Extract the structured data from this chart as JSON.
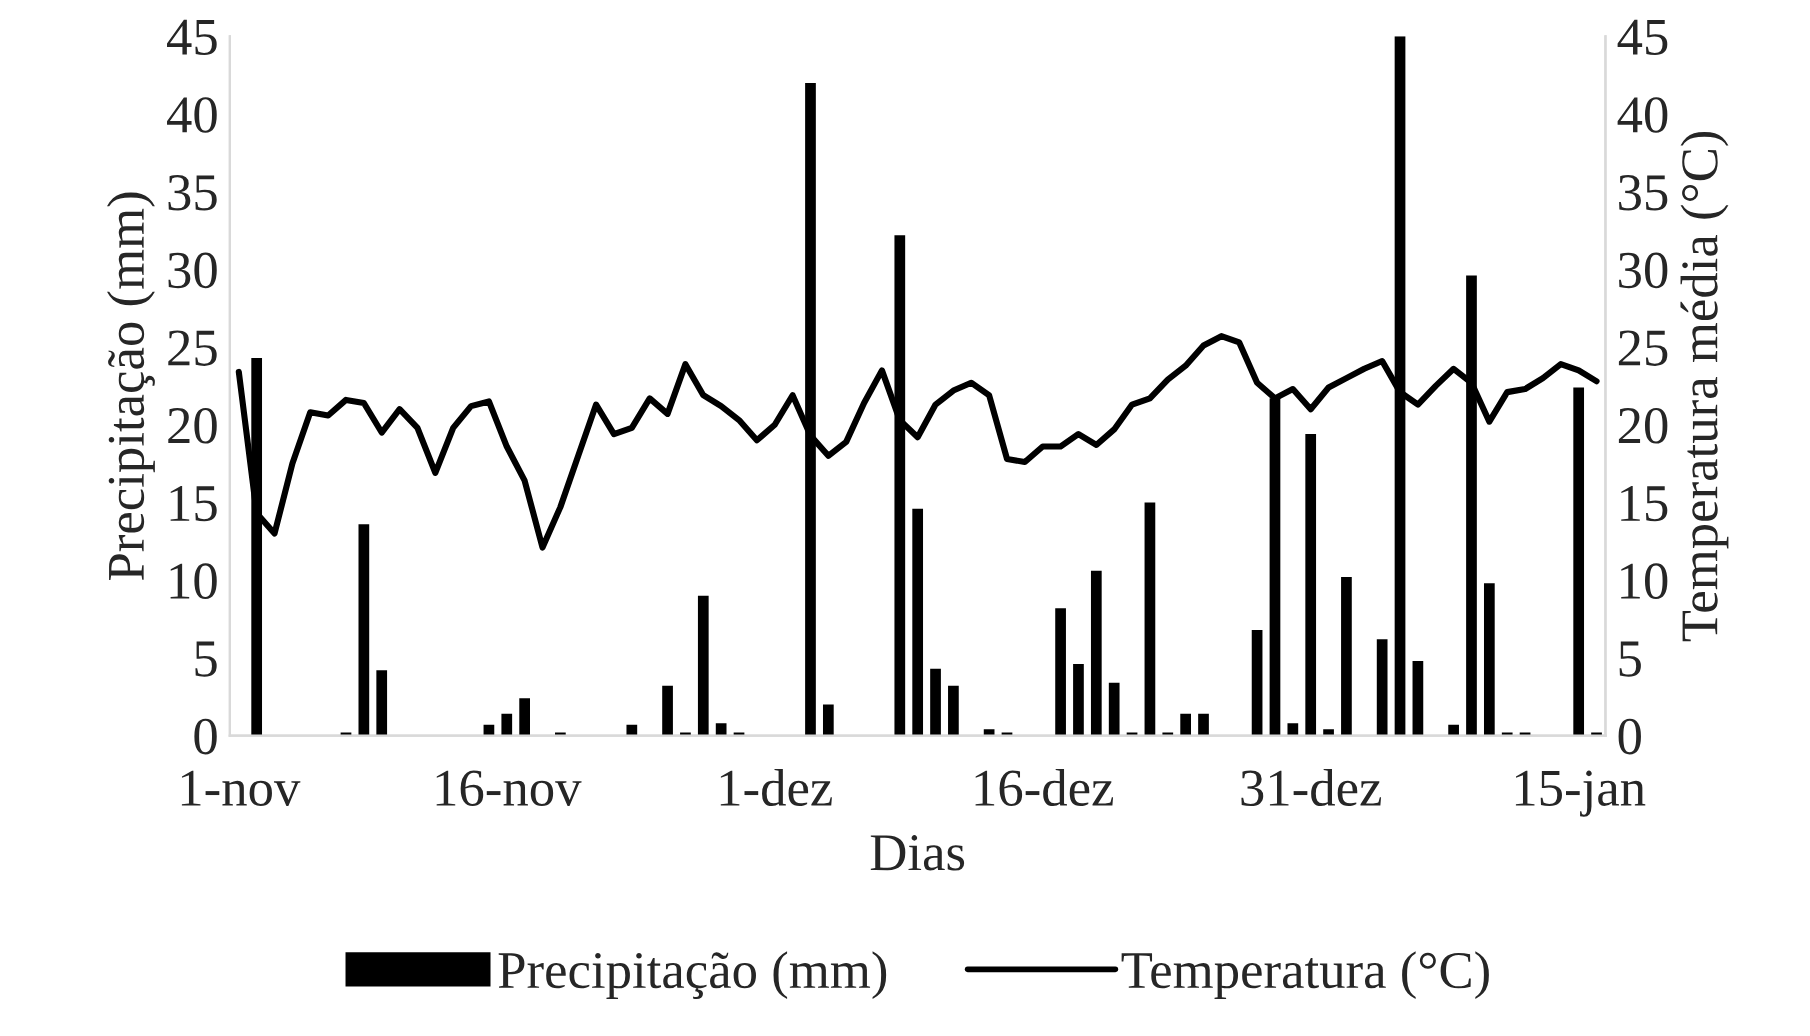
{
  "chart_data": {
    "type": "bar",
    "xlabel": "Dias",
    "ylabel": "Precipitação (mm)",
    "y2label": "Temperatura média (°C)",
    "categories": [
      "1-nov",
      null,
      null,
      null,
      null,
      null,
      null,
      null,
      null,
      null,
      null,
      null,
      null,
      null,
      null,
      "16-nov",
      null,
      null,
      null,
      null,
      null,
      null,
      null,
      null,
      null,
      null,
      null,
      null,
      null,
      null,
      "1-dez",
      null,
      null,
      null,
      null,
      null,
      null,
      null,
      null,
      null,
      null,
      null,
      null,
      null,
      null,
      "16-dez",
      null,
      null,
      null,
      null,
      null,
      null,
      null,
      null,
      null,
      null,
      null,
      null,
      null,
      null,
      "31-dez",
      null,
      null,
      null,
      null,
      null,
      null,
      null,
      null,
      null,
      null,
      null,
      null,
      null,
      null,
      "15-jan",
      null
    ],
    "series": [
      {
        "name": "Precipitação (mm)",
        "color": "#000000",
        "values": [
          0,
          24.3,
          0,
          0,
          0,
          0,
          0.2,
          13.6,
          4.2,
          0,
          0,
          0,
          0,
          0,
          0.7,
          1.4,
          2.4,
          0,
          0.2,
          0,
          0,
          0,
          0.7,
          0,
          3.2,
          0.2,
          9.0,
          0.8,
          0.2,
          0,
          0,
          0,
          42.0,
          2.0,
          0,
          0,
          0,
          32.2,
          14.6,
          4.3,
          3.2,
          0,
          0.4,
          0.2,
          0,
          0,
          8.2,
          4.6,
          10.6,
          3.4,
          0.2,
          15.0,
          0.2,
          1.4,
          1.4,
          0,
          0,
          6.8,
          21.7,
          0.8,
          19.4,
          0.4,
          10.2,
          0,
          6.2,
          45.0,
          4.8,
          0,
          0.7,
          29.6,
          9.8,
          0.2,
          0.2,
          0,
          0,
          22.4,
          0.2
        ]
      },
      {
        "name": "Temperatura (°C)",
        "type": "line",
        "axis": "y2",
        "color": "#000000",
        "values": [
          23.4,
          14.3,
          13.0,
          17.5,
          20.8,
          20.6,
          21.6,
          21.4,
          19.5,
          21.0,
          19.8,
          16.9,
          19.8,
          21.2,
          21.5,
          18.6,
          16.4,
          12.1,
          14.7,
          18.0,
          21.3,
          19.4,
          19.8,
          21.7,
          20.7,
          23.9,
          21.9,
          21.2,
          20.3,
          19.0,
          20.0,
          21.9,
          19.3,
          18.0,
          18.9,
          21.4,
          23.5,
          20.3,
          19.2,
          21.3,
          22.2,
          22.7,
          21.9,
          17.8,
          17.6,
          18.6,
          18.6,
          19.4,
          18.7,
          19.7,
          21.3,
          21.7,
          22.9,
          23.8,
          25.1,
          25.7,
          25.3,
          22.7,
          21.7,
          22.3,
          21.0,
          22.4,
          23.0,
          23.6,
          24.1,
          22.1,
          21.3,
          22.5,
          23.6,
          22.7,
          20.2,
          22.1,
          22.3,
          23.0,
          23.9,
          23.5,
          22.8
        ]
      }
    ],
    "ylim": [
      0,
      45
    ],
    "yticks": [
      0,
      5,
      10,
      15,
      20,
      25,
      30,
      35,
      40,
      45
    ],
    "y2lim": [
      0,
      45
    ],
    "y2ticks": [
      0,
      5,
      10,
      15,
      20,
      25,
      30,
      35,
      40,
      45
    ],
    "grid": false,
    "legend": "bottom"
  }
}
